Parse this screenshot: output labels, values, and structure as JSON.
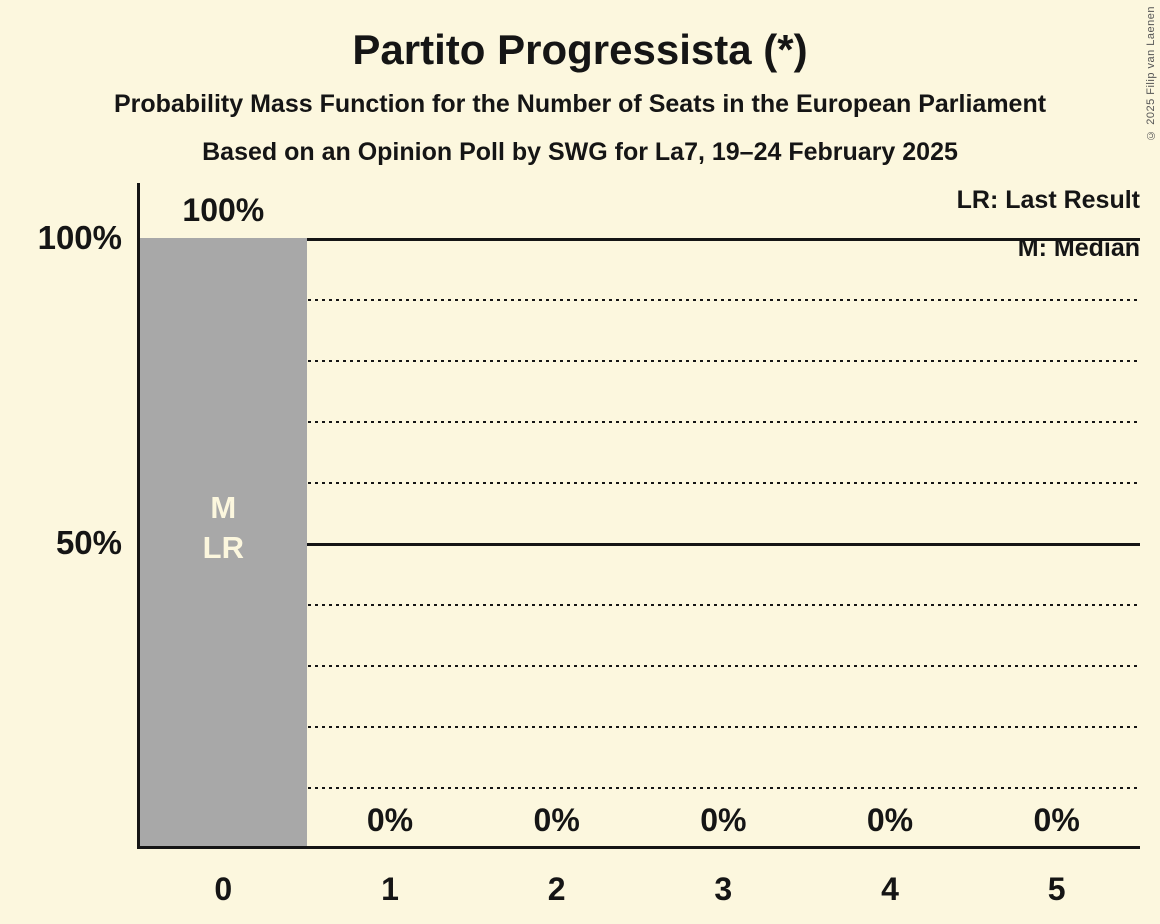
{
  "header": {
    "title": "Partito Progressista (*)",
    "subtitle1": "Probability Mass Function for the Number of Seats in the European Parliament",
    "subtitle2": "Based on an Opinion Poll by SWG for La7, 19–24 February 2025"
  },
  "legend": {
    "last_result": "LR: Last Result",
    "median": "M: Median"
  },
  "copyright": "© 2025 Filip van Laenen",
  "chart_data": {
    "type": "bar",
    "title": "Partito Progressista (*)",
    "categories": [
      "0",
      "1",
      "2",
      "3",
      "4",
      "5"
    ],
    "values": [
      100,
      0,
      0,
      0,
      0,
      0
    ],
    "bar_labels": [
      "100%",
      "0%",
      "0%",
      "0%",
      "0%",
      "0%"
    ],
    "bar_annotations": [
      [
        "M",
        "LR"
      ],
      [],
      [],
      [],
      [],
      []
    ],
    "y_tick_labels": [
      {
        "text": "100%",
        "value": 100
      },
      {
        "text": "50%",
        "value": 50
      }
    ],
    "ylim": [
      0,
      100
    ],
    "gridlines_solid": [
      50,
      100
    ],
    "gridlines_dotted": [
      10,
      20,
      30,
      40,
      60,
      70,
      80,
      90
    ],
    "legend_position": "top-right",
    "grid": "horizontal-only",
    "colors": {
      "background": "#FCF7DE",
      "bar": "#A8A8A8",
      "text": "#151515",
      "bar_annotation_text": "#FCF7DE",
      "copyright_text": "#555555"
    }
  }
}
